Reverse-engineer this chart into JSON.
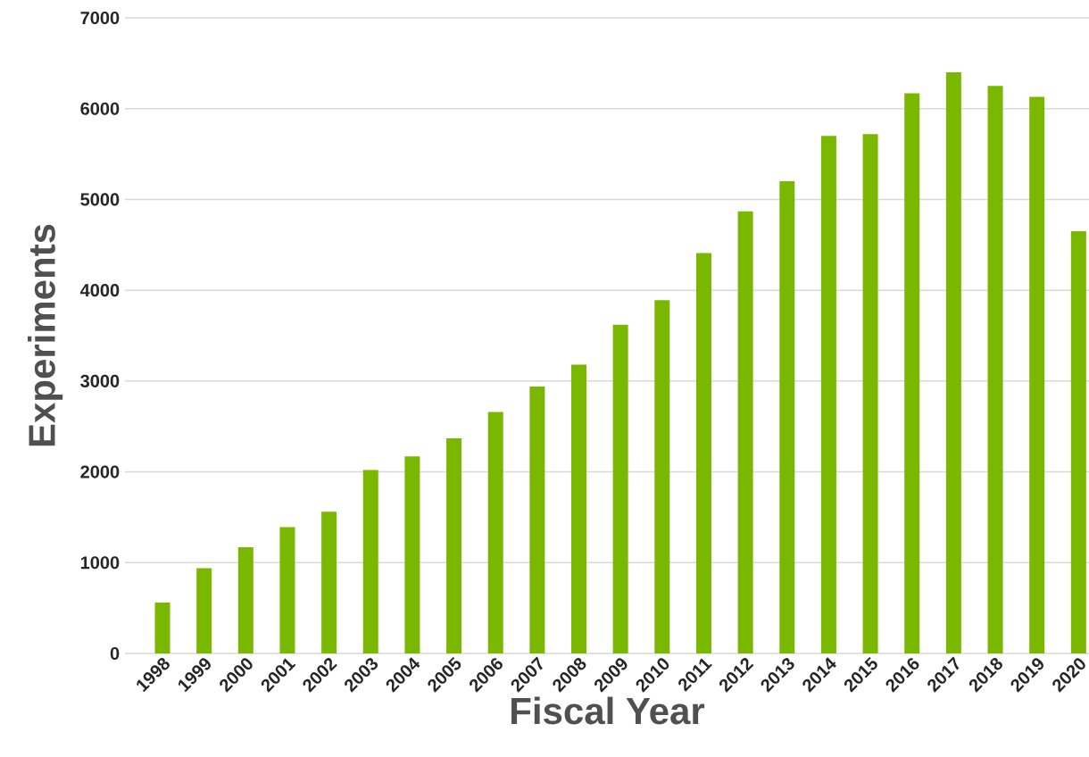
{
  "chart_data": {
    "type": "bar",
    "xlabel": "Fiscal Year",
    "ylabel": "Experiments",
    "categories": [
      "1998",
      "1999",
      "2000",
      "2001",
      "2002",
      "2003",
      "2004",
      "2005",
      "2006",
      "2007",
      "2008",
      "2009",
      "2010",
      "2011",
      "2012",
      "2013",
      "2014",
      "2015",
      "2016",
      "2017",
      "2018",
      "2019",
      "2020"
    ],
    "values": [
      560,
      940,
      1170,
      1390,
      1560,
      2020,
      2170,
      2370,
      2660,
      2940,
      3180,
      3620,
      3890,
      4410,
      4870,
      5200,
      5700,
      5720,
      6170,
      6400,
      6250,
      6130,
      4650
    ],
    "color": "#7ab800",
    "ylim": [
      0,
      7000
    ],
    "yticks": [
      0,
      1000,
      2000,
      3000,
      4000,
      5000,
      6000,
      7000
    ],
    "grid": "y"
  }
}
